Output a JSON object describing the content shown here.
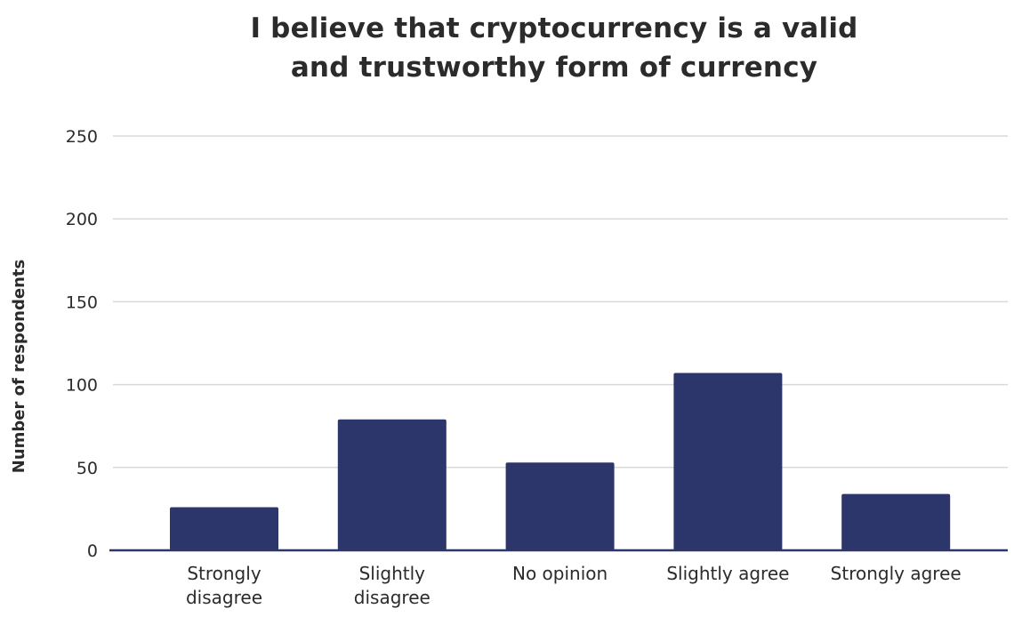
{
  "colors": {
    "bar": "#2d366b",
    "grid": "#d9d9d9",
    "axis": "#2d366b",
    "text": "#2b2b2b"
  },
  "chart_data": {
    "type": "bar",
    "title_lines": [
      "I believe that cryptocurrency is a valid",
      "and trustworthy form of currency"
    ],
    "xlabel": "",
    "ylabel": "Number of respondents",
    "categories": [
      [
        "Strongly",
        "disagree"
      ],
      [
        "Slightly",
        "disagree"
      ],
      [
        "No opinion"
      ],
      [
        "Slightly agree"
      ],
      [
        "Strongly agree"
      ]
    ],
    "values": [
      26,
      79,
      53,
      107,
      34
    ],
    "ylim": [
      0,
      250
    ],
    "yticks": [
      0,
      50,
      100,
      150,
      200,
      250
    ],
    "grid": true,
    "legend": "none"
  }
}
